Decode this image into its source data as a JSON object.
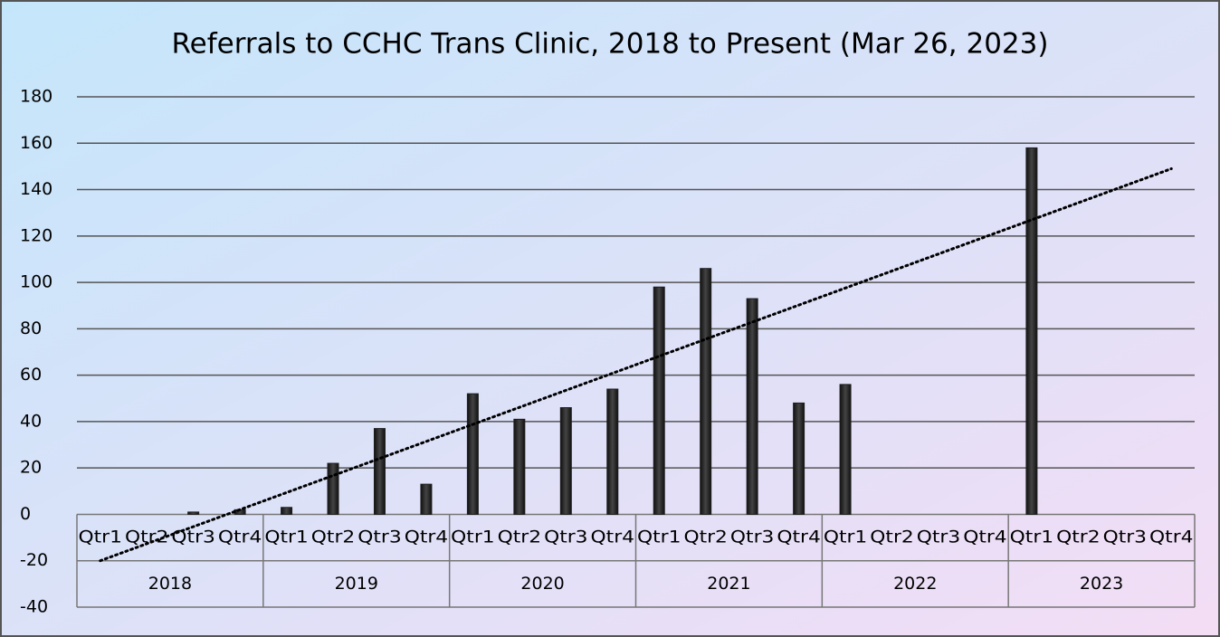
{
  "chart_data": {
    "type": "bar",
    "title": "Referrals to CCHC Trans Clinic, 2018 to Present (Mar 26, 2023)",
    "categories": [
      "Qtr1",
      "Qtr2",
      "Qtr3",
      "Qtr4",
      "Qtr1",
      "Qtr2",
      "Qtr3",
      "Qtr4",
      "Qtr1",
      "Qtr2",
      "Qtr3",
      "Qtr4",
      "Qtr1",
      "Qtr2",
      "Qtr3",
      "Qtr4",
      "Qtr1",
      "Qtr2",
      "Qtr3",
      "Qtr4",
      "Qtr1",
      "Qtr2",
      "Qtr3",
      "Qtr4"
    ],
    "groups": [
      "2018",
      "2019",
      "2020",
      "2021",
      "2022",
      "2023"
    ],
    "values": [
      0,
      0,
      1,
      2,
      3,
      22,
      37,
      13,
      52,
      41,
      46,
      54,
      98,
      106,
      93,
      48,
      56,
      null,
      null,
      null,
      158,
      null,
      null,
      null
    ],
    "color": "#1e1e1e",
    "trendline": [
      -20,
      149
    ],
    "ylim": [
      -40,
      180
    ],
    "yticks": [
      -40,
      -20,
      0,
      20,
      40,
      60,
      80,
      100,
      120,
      140,
      160,
      180
    ],
    "grid": true
  }
}
